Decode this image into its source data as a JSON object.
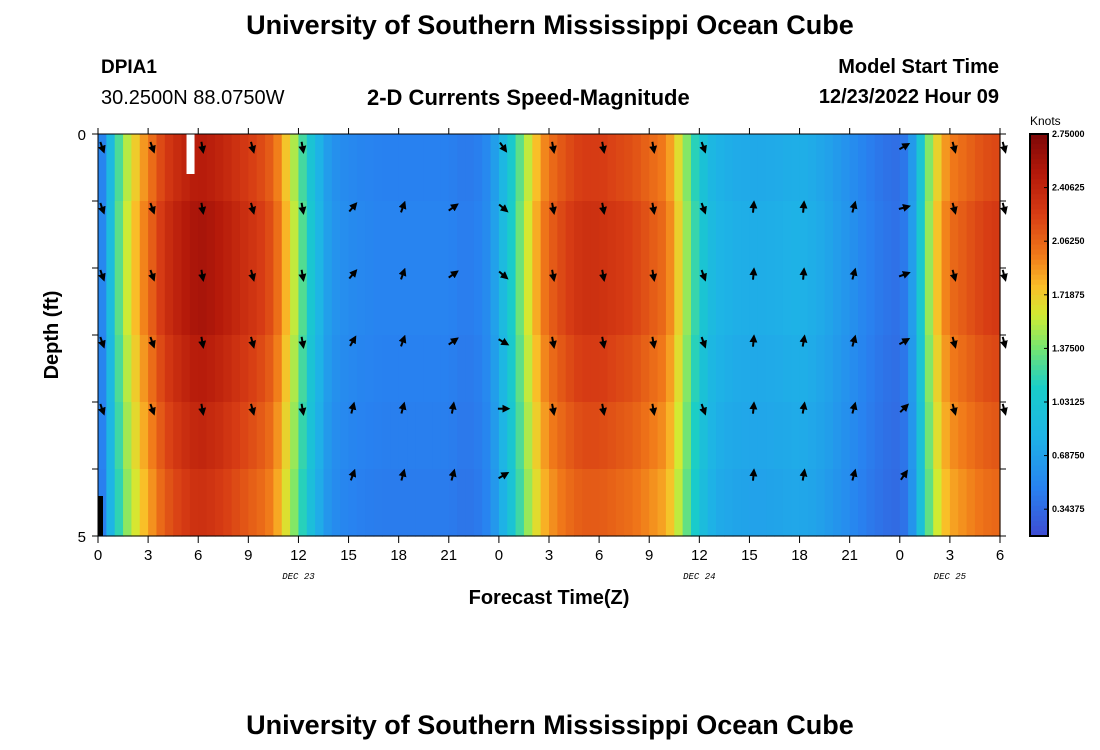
{
  "header": {
    "title": "University of Southern Mississippi Ocean Cube",
    "station_id": "DPIA1",
    "coordinates": "30.2500N  88.0750W",
    "subtitle": "2-D Currents Speed-Magnitude",
    "model_start_label": "Model Start Time",
    "model_start_value": "12/23/2022 Hour 09"
  },
  "footer": {
    "title": "University of Southern Mississippi Ocean Cube"
  },
  "chart_data": {
    "type": "heatmap",
    "title": "2-D Currents Speed-Magnitude",
    "xlabel": "Forecast Time(Z)",
    "ylabel": "Depth (ft)",
    "x_range_hours": [
      0,
      54
    ],
    "x_ticks": [
      {
        "hour": 0,
        "label": "0"
      },
      {
        "hour": 3,
        "label": "3"
      },
      {
        "hour": 6,
        "label": "6"
      },
      {
        "hour": 9,
        "label": "9"
      },
      {
        "hour": 12,
        "label": "12"
      },
      {
        "hour": 15,
        "label": "15"
      },
      {
        "hour": 18,
        "label": "18"
      },
      {
        "hour": 21,
        "label": "21"
      },
      {
        "hour": 24,
        "label": "0"
      },
      {
        "hour": 27,
        "label": "3"
      },
      {
        "hour": 30,
        "label": "6"
      },
      {
        "hour": 33,
        "label": "9"
      },
      {
        "hour": 36,
        "label": "12"
      },
      {
        "hour": 39,
        "label": "15"
      },
      {
        "hour": 42,
        "label": "18"
      },
      {
        "hour": 45,
        "label": "21"
      },
      {
        "hour": 48,
        "label": "0"
      },
      {
        "hour": 51,
        "label": "3"
      },
      {
        "hour": 54,
        "label": "6"
      }
    ],
    "date_labels": [
      {
        "hour": 12,
        "label": "DEC 23"
      },
      {
        "hour": 36,
        "label": "DEC 24"
      },
      {
        "hour": 51,
        "label": "DEC 25"
      }
    ],
    "y_range_ft": [
      0,
      5
    ],
    "y_ticks": [
      {
        "depth": 0,
        "label": "0"
      },
      {
        "depth": 5,
        "label": "5"
      }
    ],
    "depth_levels": 5,
    "colorbar": {
      "unit": "Knots",
      "range": [
        0.1718,
        2.75
      ],
      "tick_labels": [
        "2.75000",
        "2.40625",
        "2.06250",
        "1.71875",
        "1.37500",
        "1.03125",
        "0.68750",
        "0.34375"
      ]
    },
    "speed_profile": {
      "hours": [
        0,
        0.5,
        1,
        1.5,
        2,
        2.5,
        3,
        3.5,
        4,
        5,
        6,
        7,
        8,
        9,
        10,
        10.5,
        11,
        11.5,
        12,
        12.5,
        13,
        13.5,
        14,
        15,
        16,
        17,
        18,
        19,
        20,
        21,
        22,
        23,
        23.5,
        24,
        24.5,
        25,
        25.5,
        26,
        26.5,
        27,
        28,
        29,
        30,
        31,
        32,
        33,
        34,
        34.5,
        35,
        35.5,
        36,
        36.5,
        37,
        38,
        39,
        40,
        41,
        42,
        43,
        44,
        45,
        46,
        47,
        48,
        48.5,
        49,
        49.5,
        50,
        50.5,
        51,
        52,
        53,
        54
      ],
      "knots": [
        0.35,
        0.7,
        1.15,
        1.5,
        1.7,
        1.9,
        2.05,
        2.2,
        2.35,
        2.5,
        2.6,
        2.55,
        2.45,
        2.35,
        2.25,
        2.15,
        1.95,
        1.7,
        1.45,
        1.15,
        0.95,
        0.75,
        0.62,
        0.55,
        0.52,
        0.5,
        0.5,
        0.5,
        0.5,
        0.5,
        0.45,
        0.5,
        0.6,
        0.8,
        1.0,
        1.25,
        1.5,
        1.75,
        1.95,
        2.1,
        2.25,
        2.35,
        2.35,
        2.3,
        2.25,
        2.15,
        2.05,
        1.85,
        1.6,
        1.35,
        1.1,
        0.95,
        0.85,
        0.8,
        0.78,
        0.78,
        0.8,
        0.82,
        0.78,
        0.7,
        0.6,
        0.5,
        0.42,
        0.38,
        0.5,
        0.85,
        1.3,
        1.65,
        1.9,
        2.05,
        2.15,
        2.25,
        2.3
      ]
    },
    "arrows": [
      {
        "hour": 0,
        "dirs": [
          160,
          160,
          160,
          160,
          160
        ]
      },
      {
        "hour": 3,
        "dirs": [
          160,
          160,
          160,
          160,
          160
        ]
      },
      {
        "hour": 6,
        "dirs": [
          170,
          170,
          170,
          170,
          170
        ]
      },
      {
        "hour": 9,
        "dirs": [
          165,
          165,
          165,
          165,
          165
        ]
      },
      {
        "hour": 12,
        "dirs": [
          170,
          170,
          170,
          170,
          170
        ]
      },
      {
        "hour": 15,
        "dirs": [
          null,
          40,
          40,
          30,
          15,
          20
        ]
      },
      {
        "hour": 18,
        "dirs": [
          null,
          20,
          20,
          20,
          15,
          15
        ]
      },
      {
        "hour": 21,
        "dirs": [
          null,
          55,
          55,
          55,
          10,
          15
        ]
      },
      {
        "hour": 24,
        "dirs": [
          145,
          130,
          130,
          120,
          90,
          60
        ]
      },
      {
        "hour": 27,
        "dirs": [
          170,
          170,
          170,
          170,
          170
        ]
      },
      {
        "hour": 30,
        "dirs": [
          170,
          170,
          170,
          170,
          170
        ]
      },
      {
        "hour": 33,
        "dirs": [
          170,
          170,
          170,
          170,
          170
        ]
      },
      {
        "hour": 36,
        "dirs": [
          160,
          160,
          160,
          160,
          160
        ]
      },
      {
        "hour": 39,
        "dirs": [
          null,
          5,
          5,
          5,
          5,
          5
        ]
      },
      {
        "hour": 42,
        "dirs": [
          null,
          5,
          5,
          10,
          10,
          10
        ]
      },
      {
        "hour": 45,
        "dirs": [
          null,
          15,
          15,
          15,
          15,
          15
        ]
      },
      {
        "hour": 48,
        "dirs": [
          60,
          75,
          70,
          60,
          45,
          35
        ]
      },
      {
        "hour": 51,
        "dirs": [
          165,
          165,
          165,
          165,
          165
        ]
      },
      {
        "hour": 54,
        "dirs": [
          165,
          165,
          165,
          165,
          165
        ]
      }
    ]
  }
}
